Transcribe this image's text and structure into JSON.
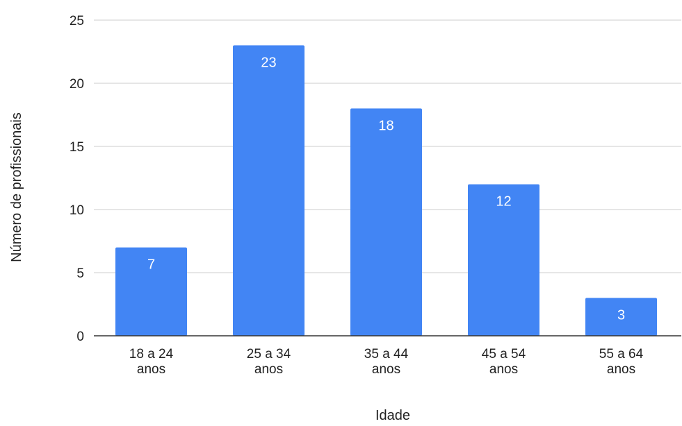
{
  "chart_data": {
    "type": "bar",
    "title": "",
    "xlabel": "Idade",
    "ylabel": "Número de profissionais",
    "categories": [
      [
        "18 a 24",
        "anos"
      ],
      [
        "25 a 34",
        "anos"
      ],
      [
        "35 a 44",
        "anos"
      ],
      [
        "45 a 54",
        "anos"
      ],
      [
        "55 a 64",
        "anos"
      ]
    ],
    "values": [
      7,
      23,
      18,
      12,
      3
    ],
    "ylim": [
      0,
      25
    ],
    "yticks": [
      0,
      5,
      10,
      15,
      20,
      25
    ],
    "grid": true,
    "data_labels": true,
    "bar_color": "#4285f4",
    "grid_color": "#cccccc",
    "axis_color": "#333333"
  }
}
